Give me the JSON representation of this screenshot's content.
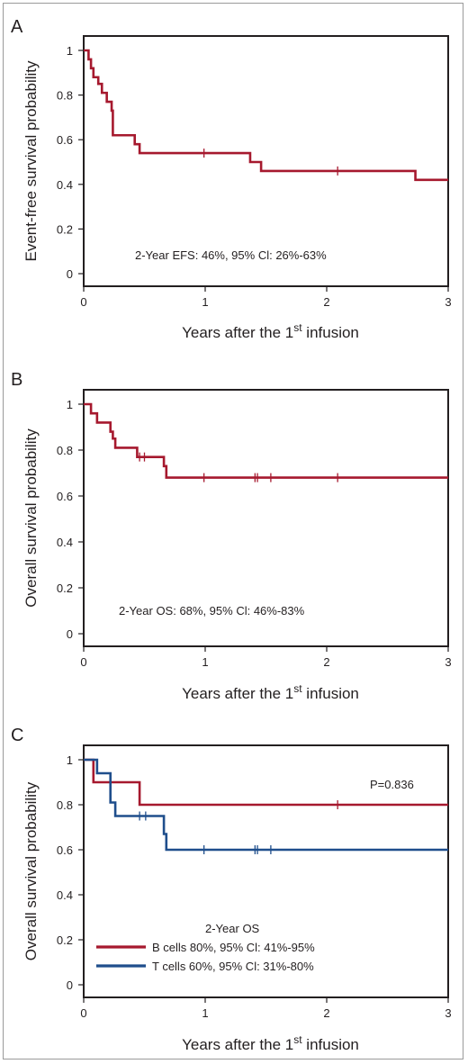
{
  "figure": {
    "border_color": "#9a9a9a"
  },
  "chart_data": [
    {
      "type": "line",
      "step": true,
      "panel_label": "A",
      "ylabel": "Event-free survival probability",
      "xlabel_prefix": "Years after the 1",
      "xlabel_sup": "st",
      "xlabel_suffix": " infusion",
      "xlim": [
        0,
        3
      ],
      "ylim": [
        0,
        1
      ],
      "xticks": [
        "0",
        "1",
        "2",
        "3"
      ],
      "yticks": [
        "0",
        "0.2",
        "0.4",
        "0.6",
        "0.8",
        "1"
      ],
      "annotations": [
        "2-Year EFS: 46%, 95% Cl: 26%-63%"
      ],
      "series": [
        {
          "color": "#a6192e",
          "x": [
            0,
            0.04,
            0.06,
            0.08,
            0.12,
            0.15,
            0.19,
            0.23,
            0.24,
            0.42,
            0.46,
            1.37,
            1.46,
            2.73,
            3.0
          ],
          "y": [
            1,
            0.96,
            0.92,
            0.88,
            0.85,
            0.81,
            0.77,
            0.73,
            0.62,
            0.58,
            0.54,
            0.5,
            0.46,
            0.42,
            0.42
          ],
          "censor_x": [
            0.99,
            2.09
          ],
          "censor_y": [
            0.54,
            0.46
          ]
        }
      ]
    },
    {
      "type": "line",
      "step": true,
      "panel_label": "B",
      "ylabel": "Overall survival probability",
      "xlabel_prefix": "Years after the 1",
      "xlabel_sup": "st",
      "xlabel_suffix": " infusion",
      "xlim": [
        0,
        3
      ],
      "ylim": [
        0,
        1
      ],
      "xticks": [
        "0",
        "1",
        "2",
        "3"
      ],
      "yticks": [
        "0",
        "0.2",
        "0.4",
        "0.6",
        "0.8",
        "1"
      ],
      "annotations": [
        "2-Year OS: 68%, 95% Cl: 46%-83%"
      ],
      "series": [
        {
          "color": "#a6192e",
          "x": [
            0,
            0.06,
            0.11,
            0.22,
            0.24,
            0.26,
            0.44,
            0.66,
            0.68,
            3.0
          ],
          "y": [
            1,
            0.96,
            0.92,
            0.88,
            0.85,
            0.81,
            0.77,
            0.73,
            0.68,
            0.68
          ],
          "censor_x": [
            0.46,
            0.5,
            0.99,
            1.41,
            1.43,
            1.54,
            2.09
          ],
          "censor_y": [
            0.77,
            0.77,
            0.68,
            0.68,
            0.68,
            0.68,
            0.68
          ]
        }
      ]
    },
    {
      "type": "line",
      "step": true,
      "panel_label": "C",
      "ylabel": "Overall survival probability",
      "xlabel_prefix": "Years after the 1",
      "xlabel_sup": "st",
      "xlabel_suffix": " infusion",
      "xlim": [
        0,
        3
      ],
      "ylim": [
        0,
        1
      ],
      "xticks": [
        "0",
        "1",
        "2",
        "3"
      ],
      "yticks": [
        "0",
        "0.2",
        "0.4",
        "0.6",
        "0.8",
        "1"
      ],
      "pvalue": "P=0.836",
      "legend_title": "2-Year OS",
      "legend_position": "bottom-left",
      "series": [
        {
          "name": "B cells",
          "legend_text": "80%, 95% Cl: 41%-95%",
          "color": "#a6192e",
          "x": [
            0,
            0.08,
            0.46,
            3.0
          ],
          "y": [
            1,
            0.9,
            0.8,
            0.8
          ],
          "censor_x": [
            2.09
          ],
          "censor_y": [
            0.8
          ]
        },
        {
          "name": "T cells",
          "legend_text": "60%, 95% Cl: 31%-80%",
          "color": "#1f4e8c",
          "x": [
            0,
            0.11,
            0.22,
            0.26,
            0.66,
            0.68,
            3.0
          ],
          "y": [
            1,
            0.94,
            0.81,
            0.75,
            0.67,
            0.6,
            0.6
          ],
          "censor_x": [
            0.46,
            0.51,
            0.99,
            1.41,
            1.43,
            1.54
          ],
          "censor_y": [
            0.75,
            0.75,
            0.6,
            0.6,
            0.6,
            0.6
          ]
        }
      ]
    }
  ]
}
